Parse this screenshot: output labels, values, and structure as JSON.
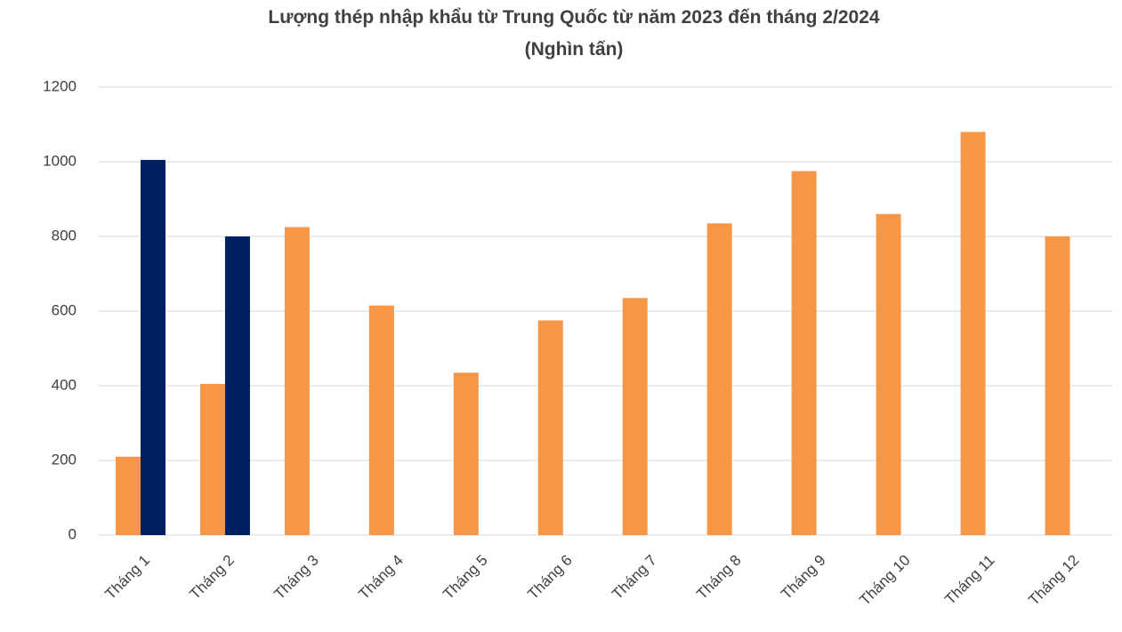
{
  "chart_data": {
    "type": "bar",
    "title": "Lượng thép nhập khẩu từ Trung Quốc từ năm 2023 đến tháng 2/2024",
    "subtitle": "(Nghìn tấn)",
    "categories": [
      "Tháng 1",
      "Tháng 2",
      "Tháng 3",
      "Tháng 4",
      "Tháng 5",
      "Tháng 6",
      "Tháng 7",
      "Tháng 8",
      "Tháng 9",
      "Tháng 10",
      "Tháng 11",
      "Tháng 12"
    ],
    "series": [
      {
        "color": "#f79646",
        "values": [
          210,
          405,
          825,
          615,
          435,
          575,
          635,
          835,
          975,
          860,
          1080,
          800
        ]
      },
      {
        "color": "#002060",
        "values": [
          1005,
          800,
          null,
          null,
          null,
          null,
          null,
          null,
          null,
          null,
          null,
          null
        ]
      }
    ],
    "ylim": [
      0,
      1200
    ],
    "yticks": [
      0,
      200,
      400,
      600,
      800,
      1000,
      1200
    ],
    "grid": true
  }
}
